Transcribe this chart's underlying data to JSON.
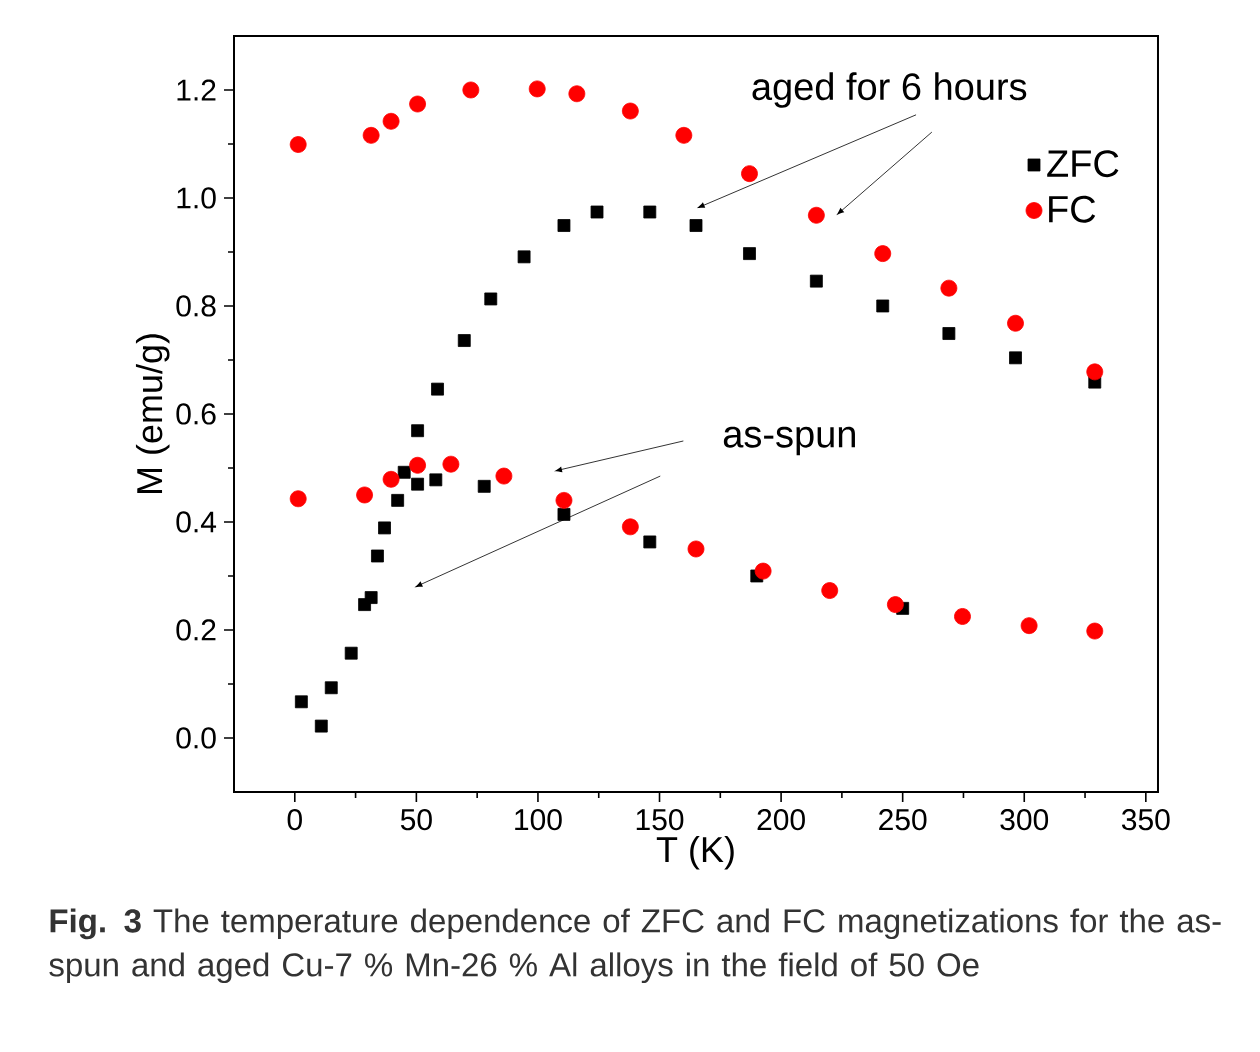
{
  "chart_data": {
    "type": "scatter",
    "xlabel": "T (K)",
    "ylabel": "M (emu/g)",
    "xlim": [
      -25,
      355
    ],
    "ylim": [
      -0.1,
      1.3
    ],
    "xticks": [
      0,
      {
        "value": 25,
        "label": null
      },
      50,
      {
        "value": 75,
        "label": null
      },
      100,
      {
        "value": 125,
        "label": null
      },
      150,
      {
        "value": 175,
        "label": null
      },
      200,
      {
        "value": 225,
        "label": null
      },
      250,
      {
        "value": 275,
        "label": null
      },
      300,
      {
        "value": 325,
        "label": null
      },
      350
    ],
    "yticks": [
      {
        "value": 0,
        "label": "0.0"
      },
      {
        "value": 0.1,
        "label": null
      },
      0.2,
      {
        "value": 0.3,
        "label": null
      },
      0.4,
      {
        "value": 0.5,
        "label": null
      },
      0.6,
      {
        "value": 0.7,
        "label": null
      },
      0.8,
      {
        "value": 0.9,
        "label": null
      },
      {
        "value": 1.0,
        "label": "1.0"
      },
      {
        "value": 1.1,
        "label": null
      },
      1.2
    ],
    "legend": "top right",
    "grid": false,
    "series": [
      {
        "name": "ZFC",
        "color": "#000000",
        "marker": "square",
        "x": [
          2.7,
          10.9,
          15,
          23.2,
          31.4,
          36.9,
          45,
          50.5,
          58.7,
          69.7,
          80.6,
          94.3,
          110.7,
          124.3,
          146,
          165,
          187,
          214.5,
          241.8,
          269,
          296.4,
          329
        ],
        "values": [
          0.067,
          0.022,
          0.093,
          0.157,
          0.26,
          0.389,
          0.492,
          0.569,
          0.646,
          0.736,
          0.813,
          0.891,
          0.949,
          0.974,
          0.974,
          0.949,
          0.897,
          0.846,
          0.8,
          0.749,
          0.704,
          0.659
        ]
      },
      {
        "name": "FC",
        "color": "#ff0000",
        "marker": "circle",
        "x": [
          1.4,
          31.4,
          39.6,
          50.5,
          72.4,
          99.7,
          116,
          138,
          160,
          187,
          214.5,
          241.8,
          269,
          296.4,
          329
        ],
        "values": [
          1.099,
          1.116,
          1.142,
          1.174,
          1.2,
          1.202,
          1.193,
          1.161,
          1.116,
          1.045,
          0.968,
          0.897,
          0.833,
          0.768,
          0.678
        ]
      },
      {
        "color": "#000000",
        "marker": "square",
        "x": [
          28.7,
          34,
          42.3,
          50.5,
          58,
          77.9,
          110.7,
          146,
          190,
          250
        ],
        "values": [
          0.247,
          0.337,
          0.44,
          0.47,
          0.478,
          0.466,
          0.414,
          0.363,
          0.3,
          0.24
        ]
      },
      {
        "color": "#ff0000",
        "marker": "circle",
        "x": [
          1.4,
          28.7,
          39.6,
          50.5,
          64.2,
          86,
          110.7,
          138,
          165,
          192.6,
          220,
          247,
          274.6,
          302,
          329
        ],
        "values": [
          0.443,
          0.45,
          0.479,
          0.505,
          0.507,
          0.485,
          0.44,
          0.391,
          0.35,
          0.309,
          0.273,
          0.247,
          0.225,
          0.208,
          0.198
        ]
      }
    ],
    "annotations": [
      "aged for 6 hours",
      "as-spun",
      "**Fig. 3** The temperature dependence of ZFC and FC magnetizations for the as-spun and aged Cu-7 % Mn-26 % Al alloys in the field of 50 Oe"
    ]
  }
}
